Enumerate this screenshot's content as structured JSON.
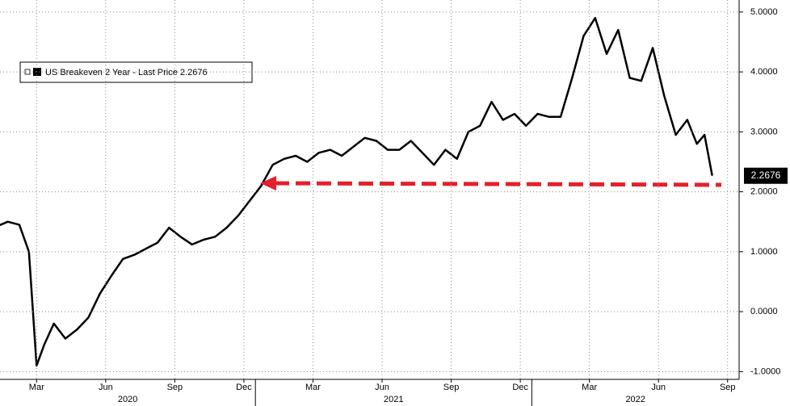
{
  "chart_data": {
    "type": "line",
    "series": [
      {
        "name": "US Breakeven 2 Year - Last Price 2.2676",
        "color": "#000000",
        "values": [
          1.38,
          1.42,
          1.5,
          1.45,
          1.0,
          -0.9,
          -0.55,
          -0.2,
          -0.45,
          -0.3,
          -0.1,
          0.3,
          0.6,
          0.88,
          0.95,
          1.05,
          1.15,
          1.4,
          1.25,
          1.12,
          1.2,
          1.25,
          1.4,
          1.6,
          1.85,
          2.1,
          2.45,
          2.55,
          2.6,
          2.5,
          2.65,
          2.7,
          2.6,
          2.75,
          2.9,
          2.85,
          2.7,
          2.7,
          2.85,
          2.65,
          2.45,
          2.7,
          2.55,
          3.0,
          3.1,
          3.5,
          3.2,
          3.3,
          3.1,
          3.3,
          3.25,
          3.25,
          3.9,
          4.6,
          4.9,
          4.3,
          4.7,
          3.9,
          3.85,
          4.4,
          3.6,
          2.95,
          3.2,
          2.8,
          2.95,
          2.2676
        ]
      }
    ],
    "x": [
      "2020-01",
      "2020-01",
      "2020-02",
      "2020-02",
      "2020-03",
      "2020-03",
      "2020-03",
      "2020-04",
      "2020-04",
      "2020-05",
      "2020-05",
      "2020-06",
      "2020-06",
      "2020-07",
      "2020-07",
      "2020-08",
      "2020-08",
      "2020-09",
      "2020-09",
      "2020-10",
      "2020-10",
      "2020-11",
      "2020-11",
      "2020-12",
      "2020-12",
      "2021-01",
      "2021-01",
      "2021-02",
      "2021-02",
      "2021-03",
      "2021-03",
      "2021-04",
      "2021-04",
      "2021-05",
      "2021-05",
      "2021-06",
      "2021-06",
      "2021-07",
      "2021-07",
      "2021-08",
      "2021-08",
      "2021-09",
      "2021-09",
      "2021-10",
      "2021-10",
      "2021-11",
      "2021-11",
      "2021-12",
      "2021-12",
      "2022-01",
      "2022-01",
      "2022-02",
      "2022-02",
      "2022-03",
      "2022-03",
      "2022-04",
      "2022-04",
      "2022-05",
      "2022-05",
      "2022-06",
      "2022-06",
      "2022-07",
      "2022-07",
      "2022-08",
      "2022-08",
      "2022-08"
    ],
    "xlim": [
      "2020-01",
      "2022-09"
    ],
    "xticks": [
      {
        "value": "2020-03",
        "label": "Mar"
      },
      {
        "value": "2020-06",
        "label": "Jun"
      },
      {
        "value": "2020-09",
        "label": "Sep"
      },
      {
        "value": "2020-12",
        "label": "Dec"
      },
      {
        "value": "2021-03",
        "label": "Mar"
      },
      {
        "value": "2021-06",
        "label": "Jun"
      },
      {
        "value": "2021-09",
        "label": "Sep"
      },
      {
        "value": "2021-12",
        "label": "Dec"
      },
      {
        "value": "2022-03",
        "label": "Mar"
      },
      {
        "value": "2022-06",
        "label": "Jun"
      },
      {
        "value": "2022-09",
        "label": "Sep"
      }
    ],
    "years": [
      "2020",
      "2021",
      "2022"
    ],
    "ylim": [
      -1.13,
      5.2
    ],
    "yticks": [
      {
        "value": -1,
        "label": "-1.0000"
      },
      {
        "value": 0,
        "label": "0.0000"
      },
      {
        "value": 1,
        "label": "1.0000"
      },
      {
        "value": 2,
        "label": "2.0000"
      },
      {
        "value": 3,
        "label": "3.0000"
      },
      {
        "value": 4,
        "label": "4.0000"
      },
      {
        "value": 5,
        "label": "5.0000"
      }
    ],
    "grid": true
  }
}
